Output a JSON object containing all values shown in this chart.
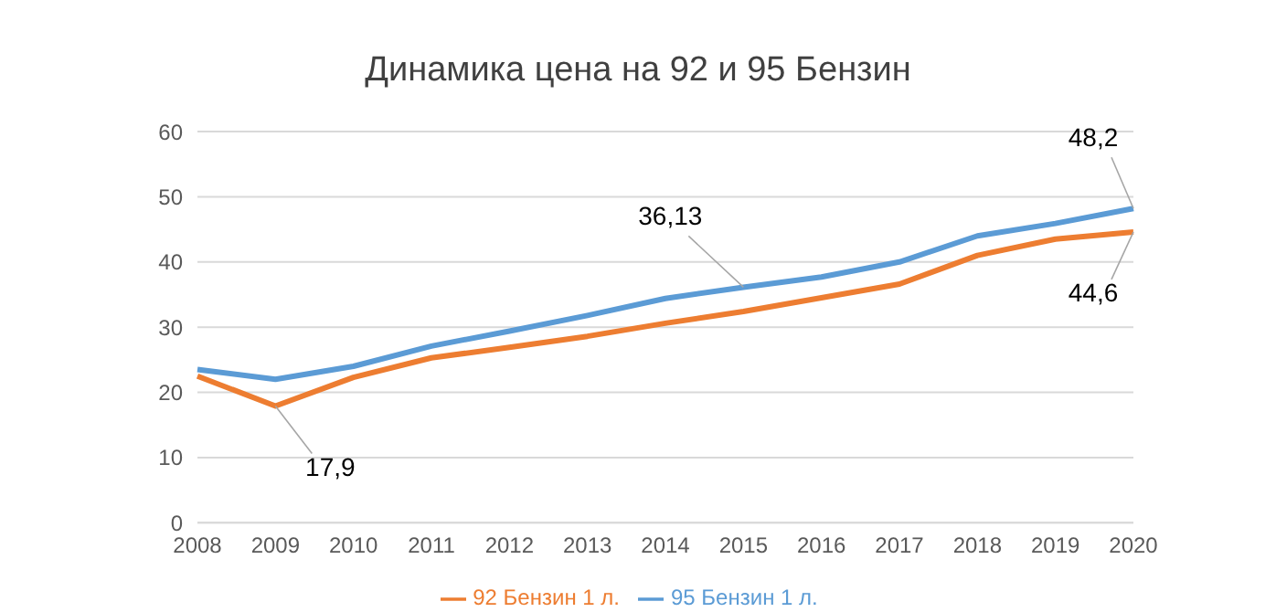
{
  "chart_data": {
    "type": "line",
    "title": "Динамика цена на 92 и 95 Бензин",
    "categories": [
      "2008",
      "2009",
      "2010",
      "2011",
      "2012",
      "2013",
      "2014",
      "2015",
      "2016",
      "2017",
      "2018",
      "2019",
      "2020"
    ],
    "series": [
      {
        "name": "95 Бензин 1 л.",
        "color": "#5b9bd5",
        "values": [
          23.5,
          22.0,
          24.0,
          27.1,
          29.4,
          31.8,
          34.4,
          36.13,
          37.7,
          40.0,
          44.0,
          45.9,
          48.2
        ],
        "value_labels": [
          null,
          null,
          null,
          null,
          null,
          null,
          null,
          "36,13",
          null,
          null,
          null,
          null,
          "48,2"
        ]
      },
      {
        "name": "92 Бензин 1 л.",
        "color": "#ed7d31",
        "values": [
          22.5,
          17.9,
          22.3,
          25.3,
          26.9,
          28.6,
          30.6,
          32.4,
          34.5,
          36.6,
          41.0,
          43.5,
          44.6
        ],
        "value_labels": [
          null,
          "17,9",
          null,
          null,
          null,
          null,
          null,
          null,
          null,
          null,
          null,
          null,
          "44,6"
        ]
      }
    ],
    "ylim": [
      0,
      60
    ],
    "yticks": [
      0,
      10,
      20,
      30,
      40,
      50,
      60
    ],
    "grid": "y",
    "legend": "bottom",
    "marker": "none",
    "line_style": "solid"
  }
}
